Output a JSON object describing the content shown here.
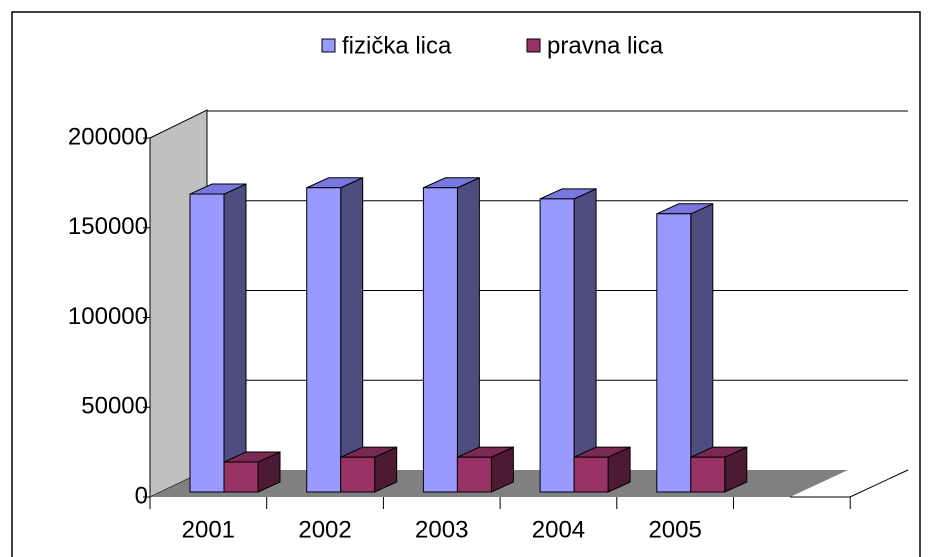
{
  "chart_data": {
    "type": "bar3d",
    "categories": [
      "2001",
      "2002",
      "2003",
      "2004",
      "2005"
    ],
    "series": [
      {
        "name": "fizička lica",
        "color": "#9999ff",
        "side": "#4d4d80",
        "top": "#7878e0",
        "values": [
          166000,
          169500,
          169500,
          163300,
          155000
        ]
      },
      {
        "name": "pravna lica",
        "color": "#993366",
        "side": "#4d1a33",
        "top": "#7a2952",
        "values": [
          16700,
          19400,
          19400,
          19400,
          19400
        ]
      }
    ],
    "ylim": [
      0,
      200000
    ],
    "yticks": [
      0,
      50000,
      100000,
      150000,
      200000
    ],
    "grid": true,
    "legend": "top"
  }
}
